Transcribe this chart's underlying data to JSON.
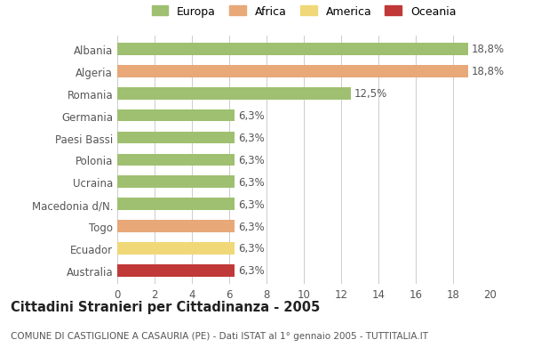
{
  "categories": [
    "Albania",
    "Algeria",
    "Romania",
    "Germania",
    "Paesi Bassi",
    "Polonia",
    "Ucraina",
    "Macedonia d/N.",
    "Togo",
    "Ecuador",
    "Australia"
  ],
  "values": [
    18.8,
    18.8,
    12.5,
    6.3,
    6.3,
    6.3,
    6.3,
    6.3,
    6.3,
    6.3,
    6.3
  ],
  "labels": [
    "18,8%",
    "18,8%",
    "12,5%",
    "6,3%",
    "6,3%",
    "6,3%",
    "6,3%",
    "6,3%",
    "6,3%",
    "6,3%",
    "6,3%"
  ],
  "colors": [
    "#9fc070",
    "#e8a878",
    "#9fc070",
    "#9fc070",
    "#9fc070",
    "#9fc070",
    "#9fc070",
    "#9fc070",
    "#e8a878",
    "#f0d878",
    "#c03838"
  ],
  "legend_labels": [
    "Europa",
    "Africa",
    "America",
    "Oceania"
  ],
  "legend_colors": [
    "#9fc070",
    "#e8a878",
    "#f0d878",
    "#c03838"
  ],
  "xlim": [
    0,
    20
  ],
  "xticks": [
    0,
    2,
    4,
    6,
    8,
    10,
    12,
    14,
    16,
    18,
    20
  ],
  "title": "Cittadini Stranieri per Cittadinanza - 2005",
  "subtitle": "COMUNE DI CASTIGLIONE A CASAURIA (PE) - Dati ISTAT al 1° gennaio 2005 - TUTTITALIA.IT",
  "background_color": "#ffffff",
  "plot_bg_color": "#ffffff",
  "grid_color": "#cccccc",
  "bar_height": 0.55,
  "label_fontsize": 8.5,
  "title_fontsize": 10.5,
  "subtitle_fontsize": 7.5,
  "tick_fontsize": 8.5,
  "legend_fontsize": 9,
  "ytick_color": "#555555",
  "xtick_color": "#555555",
  "label_color": "#555555"
}
